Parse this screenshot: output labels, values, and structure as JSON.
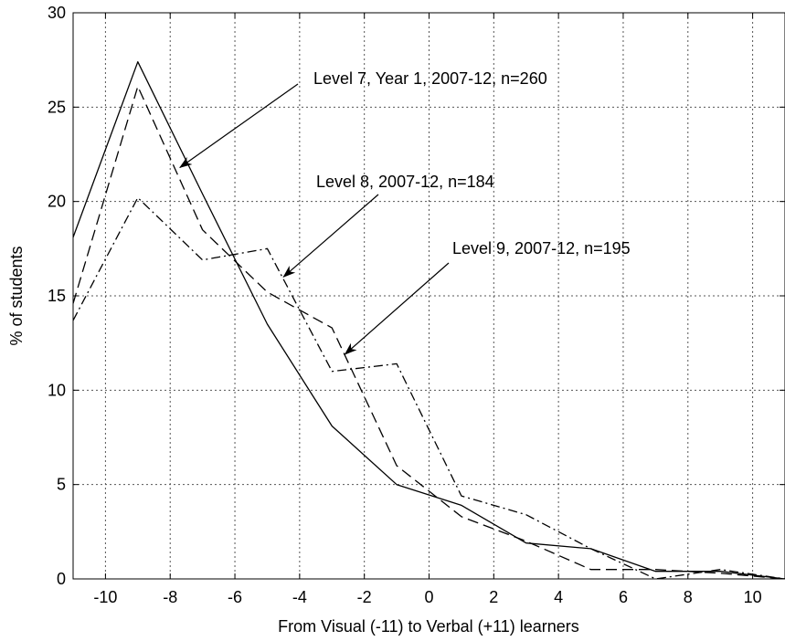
{
  "chart_data": {
    "type": "line",
    "xlabel": "From Visual (-11) to Verbal (+11) learners",
    "ylabel": "% of students",
    "xlim": [
      -11,
      11
    ],
    "ylim": [
      0,
      30
    ],
    "xticks": [
      -10,
      -8,
      -6,
      -4,
      -2,
      0,
      2,
      4,
      6,
      8,
      10
    ],
    "yticks": [
      0,
      5,
      10,
      15,
      20,
      25,
      30
    ],
    "grid": true,
    "x": [
      -11,
      -9,
      -7,
      -5,
      -3,
      -1,
      1,
      3,
      5,
      7,
      9,
      11
    ],
    "series": [
      {
        "values": [
          18.1,
          27.4,
          20.4,
          13.5,
          8.1,
          5.0,
          3.9,
          1.9,
          1.6,
          0.4,
          0.4,
          0.0
        ],
        "dash": "solid"
      },
      {
        "values": [
          14.6,
          26.1,
          18.5,
          15.2,
          13.3,
          6.0,
          3.3,
          2.0,
          0.5,
          0.5,
          0.3,
          0.0
        ],
        "dash": "dashed"
      },
      {
        "values": [
          13.7,
          20.2,
          16.9,
          17.5,
          11.0,
          11.4,
          4.4,
          3.4,
          1.6,
          0.0,
          0.5,
          0.0
        ],
        "dash": "dashdot"
      }
    ],
    "annotations": [
      {
        "text": "Level 7, Year 1, 2007-12, n=260",
        "points_to": {
          "series": 0,
          "x": -7.7,
          "y": 21.8
        }
      },
      {
        "text": "Level 8, 2007-12, n=184",
        "points_to": {
          "series": 1,
          "x": -4.5,
          "y": 16.0
        }
      },
      {
        "text": "Level 9, 2007-12, n=195",
        "points_to": {
          "series": 2,
          "x": -2.6,
          "y": 11.9
        }
      }
    ],
    "line_color": "#000000",
    "grid_color": "#555555"
  }
}
